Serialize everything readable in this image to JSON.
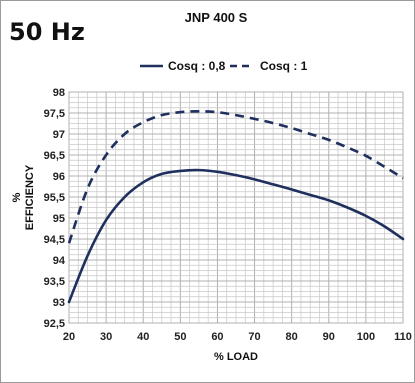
{
  "header": {
    "frequency_label": "50 Hz",
    "model_label": "JNP 400 S"
  },
  "colors": {
    "series": "#1f2f5e",
    "grid": "#c8c8c8",
    "frame": "#9a9a9a"
  },
  "chart_data": {
    "type": "line",
    "title": "JNP 400 S",
    "xlabel": "% LOAD",
    "ylabel_lines": [
      "%",
      "EFFICIENCY"
    ],
    "xlim": [
      20,
      110
    ],
    "ylim": [
      92.5,
      98
    ],
    "x_ticks": [
      20,
      30,
      40,
      50,
      60,
      70,
      80,
      90,
      100,
      110
    ],
    "x_tick_labels": [
      "20",
      "30",
      "40",
      "50",
      "60",
      "70",
      "80",
      "90",
      "100",
      "110"
    ],
    "y_ticks": [
      92.5,
      93,
      93.5,
      94,
      94.5,
      95,
      95.5,
      96,
      96.5,
      97,
      97.5,
      98
    ],
    "y_tick_labels": [
      "92,5",
      "93",
      "93,5",
      "94",
      "94,5",
      "95",
      "95,5",
      "96",
      "96,5",
      "97",
      "97,5",
      "98"
    ],
    "grid": true,
    "legend_position": "top-center",
    "series": [
      {
        "name": "Cosq : 0,8",
        "style": "solid",
        "x": [
          20,
          25,
          30,
          35,
          40,
          45,
          50,
          55,
          60,
          65,
          70,
          75,
          80,
          85,
          90,
          95,
          100,
          105,
          110
        ],
        "y": [
          93.0,
          94.1,
          94.95,
          95.5,
          95.85,
          96.05,
          96.12,
          96.14,
          96.1,
          96.02,
          95.92,
          95.8,
          95.68,
          95.55,
          95.42,
          95.25,
          95.05,
          94.8,
          94.5
        ]
      },
      {
        "name": "Cosq : 1",
        "style": "dashed",
        "x": [
          20,
          25,
          30,
          35,
          40,
          45,
          50,
          55,
          60,
          65,
          70,
          75,
          80,
          85,
          90,
          95,
          100,
          105,
          110
        ],
        "y": [
          94.4,
          95.7,
          96.5,
          97.0,
          97.28,
          97.45,
          97.52,
          97.54,
          97.52,
          97.45,
          97.36,
          97.26,
          97.14,
          97.0,
          96.86,
          96.68,
          96.48,
          96.22,
          95.95
        ]
      }
    ]
  }
}
